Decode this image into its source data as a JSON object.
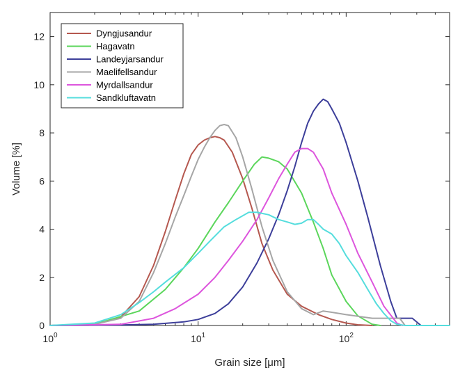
{
  "chart_data": {
    "type": "line",
    "title": "",
    "xlabel": "Grain size [μm]",
    "ylabel": "Volume [%]",
    "xscale": "log",
    "xlim": [
      1,
      500
    ],
    "ylim": [
      0,
      13
    ],
    "x_ticks": [
      {
        "value": 1,
        "base": "10",
        "exp": "0"
      },
      {
        "value": 10,
        "base": "10",
        "exp": "1"
      },
      {
        "value": 100,
        "base": "10",
        "exp": "2"
      }
    ],
    "y_ticks": [
      0,
      2,
      4,
      6,
      8,
      10,
      12
    ],
    "grid": false,
    "legend_position": "top-left",
    "series": [
      {
        "name": "Dyngjusandur",
        "color": "#b5584f",
        "x": [
          1,
          2,
          3,
          4,
          5,
          6,
          7,
          8,
          9,
          10,
          11,
          12,
          13,
          14,
          15,
          17,
          20,
          23,
          27,
          32,
          40,
          50,
          65,
          80,
          100,
          120,
          150
        ],
        "y": [
          0,
          0.05,
          0.35,
          1.2,
          2.5,
          3.9,
          5.2,
          6.3,
          7.1,
          7.5,
          7.7,
          7.8,
          7.85,
          7.8,
          7.7,
          7.2,
          6.1,
          4.9,
          3.4,
          2.3,
          1.3,
          0.8,
          0.45,
          0.25,
          0.1,
          0.03,
          0
        ]
      },
      {
        "name": "Hagavatn",
        "color": "#5bd65b",
        "x": [
          1,
          2,
          4,
          6,
          8,
          10,
          13,
          16,
          20,
          24,
          27,
          30,
          35,
          40,
          50,
          60,
          70,
          80,
          100,
          120,
          150,
          170
        ],
        "y": [
          0,
          0.05,
          0.6,
          1.5,
          2.4,
          3.2,
          4.3,
          5.1,
          6,
          6.7,
          7,
          6.95,
          6.8,
          6.5,
          5.5,
          4.3,
          3.2,
          2.1,
          1,
          0.4,
          0.05,
          0
        ]
      },
      {
        "name": "Landeyjarsandur",
        "color": "#3d3f9a",
        "x": [
          1,
          3,
          5,
          8,
          10,
          13,
          16,
          20,
          25,
          30,
          35,
          40,
          45,
          50,
          55,
          60,
          65,
          70,
          75,
          80,
          90,
          100,
          120,
          140,
          170,
          200,
          220,
          280,
          320
        ],
        "y": [
          0,
          0.02,
          0.05,
          0.15,
          0.25,
          0.5,
          0.9,
          1.6,
          2.6,
          3.6,
          4.6,
          5.6,
          6.6,
          7.6,
          8.4,
          8.9,
          9.2,
          9.4,
          9.3,
          9.0,
          8.4,
          7.6,
          6.0,
          4.5,
          2.5,
          1.0,
          0.3,
          0.3,
          0
        ]
      },
      {
        "name": "Maelifellsandur",
        "color": "#a6a6a6",
        "x": [
          1,
          2,
          3,
          4,
          5,
          6,
          7,
          8,
          9,
          10,
          11,
          12,
          13,
          14,
          15,
          16,
          18,
          20,
          23,
          27,
          32,
          40,
          50,
          60,
          70,
          80,
          100,
          150,
          230,
          250
        ],
        "y": [
          0,
          0.05,
          0.3,
          1.0,
          2.2,
          3.4,
          4.5,
          5.4,
          6.2,
          6.9,
          7.4,
          7.8,
          8.1,
          8.3,
          8.35,
          8.3,
          7.8,
          7.0,
          5.7,
          4.1,
          2.7,
          1.4,
          0.7,
          0.45,
          0.6,
          0.55,
          0.45,
          0.3,
          0.3,
          0
        ]
      },
      {
        "name": "Myrdallsandur",
        "color": "#dd55dd",
        "x": [
          1,
          3,
          5,
          7,
          10,
          13,
          16,
          20,
          25,
          30,
          35,
          40,
          45,
          50,
          55,
          60,
          70,
          80,
          100,
          120,
          150,
          180,
          220,
          240
        ],
        "y": [
          0,
          0.05,
          0.3,
          0.7,
          1.3,
          2.0,
          2.7,
          3.5,
          4.4,
          5.3,
          6.1,
          6.7,
          7.2,
          7.35,
          7.35,
          7.2,
          6.5,
          5.5,
          4.2,
          3.0,
          1.8,
          0.8,
          0.1,
          0
        ]
      },
      {
        "name": "Sandkluftavatn",
        "color": "#55dddd",
        "x": [
          1,
          2,
          3,
          4,
          5,
          6,
          8,
          10,
          12,
          15,
          18,
          22,
          25,
          30,
          35,
          40,
          45,
          50,
          55,
          60,
          65,
          70,
          80,
          90,
          100,
          120,
          140,
          160,
          180,
          200,
          220,
          250,
          500
        ],
        "y": [
          0,
          0.1,
          0.45,
          0.95,
          1.4,
          1.8,
          2.4,
          3.0,
          3.5,
          4.1,
          4.4,
          4.7,
          4.7,
          4.6,
          4.4,
          4.3,
          4.2,
          4.25,
          4.4,
          4.4,
          4.2,
          4.0,
          3.8,
          3.4,
          2.9,
          2.2,
          1.5,
          0.9,
          0.5,
          0.2,
          0.05,
          0,
          0
        ]
      }
    ]
  }
}
